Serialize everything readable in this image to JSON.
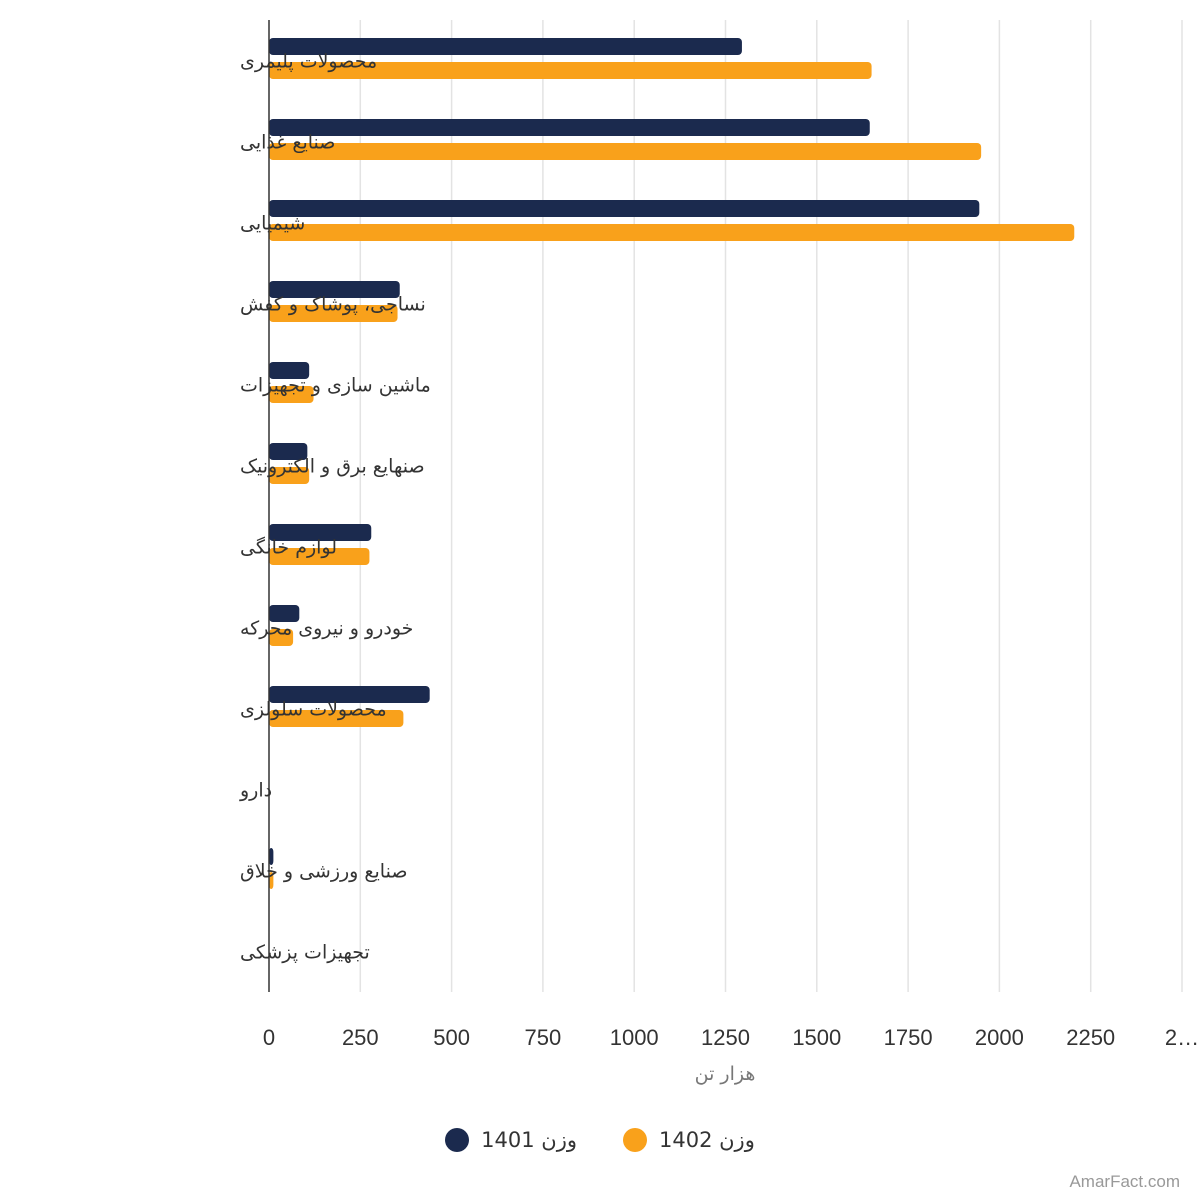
{
  "chart_data": {
    "type": "bar",
    "orientation": "horizontal",
    "categories": [
      "محصولات پلیمری",
      "صنایع غذایی",
      "شیمیایی",
      "نساجی، پوشاک و کفش",
      "ماشین سازی و تجهیزات",
      "صنهایع برق و الکترونیک",
      "لوازم خانگی",
      "خودرو و نیروی محرکه",
      "محصولات سلولزی",
      "دارو",
      "صنایع ورزشی و خلاق",
      "تجهیزات پزشکی"
    ],
    "series": [
      {
        "name": "وزن 1401",
        "color": "#1b2a4e",
        "values": [
          1295,
          1645,
          1945,
          358,
          110,
          105,
          280,
          83,
          440,
          0,
          12,
          0
        ]
      },
      {
        "name": "وزن 1402",
        "color": "#f9a11b",
        "values": [
          1650,
          1950,
          2205,
          352,
          122,
          110,
          275,
          66,
          368,
          0,
          12,
          0
        ]
      }
    ],
    "x_ticks": [
      "0",
      "250",
      "500",
      "750",
      "1000",
      "1250",
      "1500",
      "1750",
      "2000",
      "2250",
      "2…"
    ],
    "xlabel": "هزار تن",
    "xlim": [
      0,
      2500
    ],
    "grid": true,
    "legend_position": "bottom"
  },
  "credit": "AmarFact.com"
}
